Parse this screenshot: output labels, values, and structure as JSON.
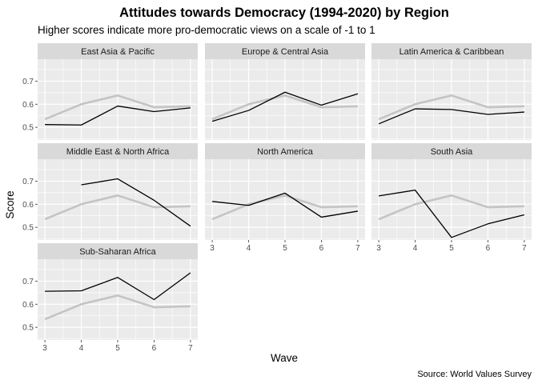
{
  "chart_data": {
    "type": "line",
    "title": "Attitudes towards Democracy (1994-2020) by Region",
    "subtitle": "Higher scores indicate more pro-democratic views on a scale of -1 to 1",
    "xlabel": "Wave",
    "ylabel": "Score",
    "caption": "Source: World Values Survey",
    "x": [
      3,
      4,
      5,
      6,
      7
    ],
    "x_ticks": [
      "3",
      "4",
      "5",
      "6",
      "7"
    ],
    "y_ticks": [
      "0.5",
      "0.6",
      "0.7"
    ],
    "ylim": [
      0.445,
      0.795
    ],
    "xlim": [
      2.8,
      7.2
    ],
    "grid": true,
    "reference_series": {
      "values": [
        0.535,
        0.6,
        0.638,
        0.587,
        0.591
      ],
      "color": "#c4c4c4"
    },
    "series_color": "#000000",
    "panel_bg": "#ebebeb",
    "strip_bg": "#d9d9d9",
    "panels": [
      {
        "name": "East Asia & Pacific",
        "values": [
          0.512,
          0.51,
          0.592,
          0.568,
          0.584
        ]
      },
      {
        "name": "Europe & Central Asia",
        "values": [
          0.526,
          0.573,
          0.652,
          0.596,
          0.645
        ]
      },
      {
        "name": "Latin America & Caribbean",
        "values": [
          0.515,
          0.58,
          0.577,
          0.556,
          0.566
        ]
      },
      {
        "name": "Middle East & North Africa",
        "values": [
          null,
          0.684,
          0.71,
          0.617,
          0.505
        ]
      },
      {
        "name": "North America",
        "values": [
          0.612,
          0.595,
          0.648,
          0.544,
          0.57
        ]
      },
      {
        "name": "South Asia",
        "values": [
          0.636,
          0.661,
          0.456,
          0.515,
          0.554
        ]
      },
      {
        "name": "Sub-Saharan Africa",
        "values": [
          0.656,
          0.658,
          0.716,
          0.62,
          0.736
        ]
      }
    ]
  }
}
